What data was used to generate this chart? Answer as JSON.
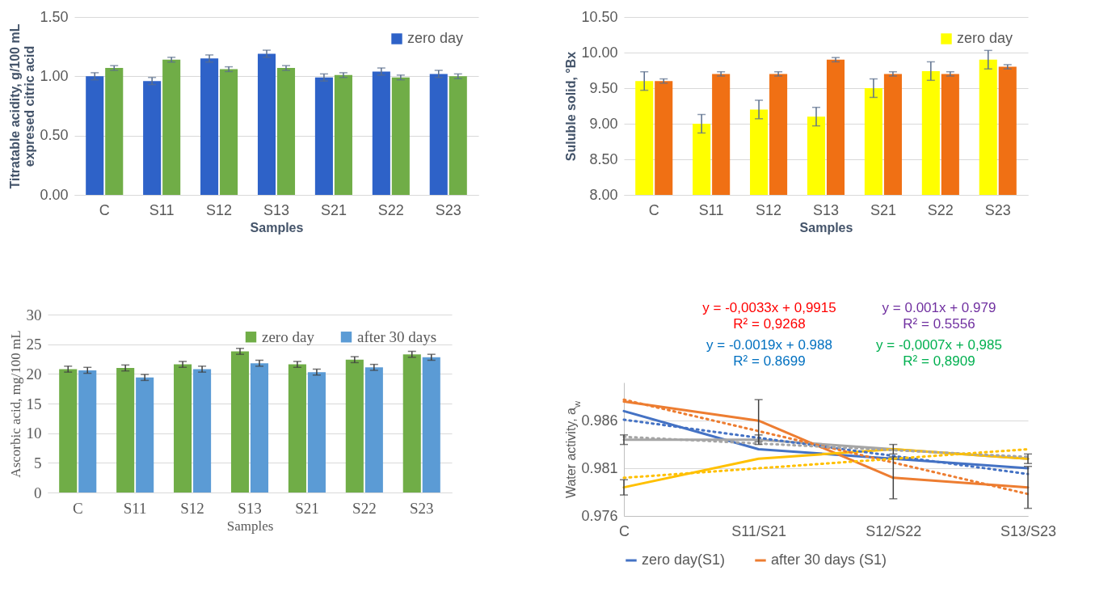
{
  "chart_data": [
    {
      "type": "bar",
      "categories": [
        "C",
        "S11",
        "S12",
        "S13",
        "S21",
        "S22",
        "S23"
      ],
      "xlabel": "Samples",
      "ylabel": "Titratable acidity, g/100 mL expresed citric acid",
      "ylim": [
        0,
        1.5
      ],
      "yticks": [
        {
          "value": 0,
          "label": "0.00"
        },
        {
          "value": 0.5,
          "label": "0.50"
        },
        {
          "value": 1,
          "label": "1.00"
        },
        {
          "value": 1.5,
          "label": "1.50"
        }
      ],
      "grid": "y",
      "legend": "top right",
      "series": [
        {
          "name": "zero day",
          "color": "#2e62c8",
          "values": [
            1.0,
            0.96,
            1.15,
            1.19,
            0.99,
            1.04,
            1.02
          ],
          "errors": [
            0.03,
            0.03,
            0.03,
            0.03,
            0.03,
            0.03,
            0.03
          ]
        },
        {
          "color": "#70ad47",
          "values": [
            1.07,
            1.14,
            1.06,
            1.07,
            1.01,
            0.99,
            1.0
          ],
          "errors": [
            0.02,
            0.02,
            0.02,
            0.02,
            0.02,
            0.02,
            0.02
          ]
        }
      ]
    },
    {
      "type": "bar",
      "categories": [
        "C",
        "S11",
        "S12",
        "S13",
        "S21",
        "S22",
        "S23"
      ],
      "xlabel": "Samples",
      "ylabel": "Suluble solid, °Bx",
      "ylim": [
        8,
        10.5
      ],
      "yticks": [
        {
          "value": 8,
          "label": "8.00"
        },
        {
          "value": 8.5,
          "label": "8.50"
        },
        {
          "value": 9,
          "label": "9.00"
        },
        {
          "value": 9.5,
          "label": "9.50"
        },
        {
          "value": 10,
          "label": "10.00"
        },
        {
          "value": 10.5,
          "label": "10.50"
        }
      ],
      "grid": "y",
      "legend": "top right",
      "series": [
        {
          "name": "zero day",
          "color": "#ffff00",
          "values": [
            9.6,
            9.0,
            9.2,
            9.1,
            9.5,
            9.74,
            9.9
          ],
          "errors": [
            0.13,
            0.13,
            0.13,
            0.13,
            0.13,
            0.13,
            0.13
          ]
        },
        {
          "color": "#f07014",
          "values": [
            9.6,
            9.7,
            9.7,
            9.9,
            9.7,
            9.7,
            9.8
          ],
          "errors": [
            0.03,
            0.03,
            0.03,
            0.03,
            0.03,
            0.03,
            0.03
          ]
        }
      ]
    },
    {
      "type": "bar",
      "categories": [
        "C",
        "S11",
        "S12",
        "S13",
        "S21",
        "S22",
        "S23"
      ],
      "xlabel": "Samples",
      "ylabel": "Ascorbic acid, mg/100 mL",
      "ylim": [
        0,
        30
      ],
      "yticks": [
        0,
        5,
        10,
        15,
        20,
        25,
        30
      ],
      "grid": "y",
      "legend": "top right",
      "series": [
        {
          "name": "zero day",
          "color": "#70ad47",
          "values": [
            20.8,
            21.0,
            21.6,
            23.8,
            21.6,
            22.4,
            23.3
          ],
          "errors": [
            0.5,
            0.5,
            0.5,
            0.5,
            0.5,
            0.5,
            0.5
          ]
        },
        {
          "name": "after 30 days",
          "color": "#5b9bd5",
          "values": [
            20.6,
            19.4,
            20.8,
            21.8,
            20.3,
            21.1,
            22.8
          ],
          "errors": [
            0.5,
            0.5,
            0.5,
            0.5,
            0.5,
            0.5,
            0.5
          ]
        }
      ]
    },
    {
      "type": "line",
      "categories": [
        "C",
        "S11/S21",
        "S12/S22",
        "S13/S23"
      ],
      "ylabel": "Water activity, a$_{w}$",
      "ylim": [
        0.976,
        0.99
      ],
      "yticks": [
        0.976,
        0.981,
        0.986
      ],
      "grid": "y",
      "legend": "bottom",
      "line_style": "solid",
      "annotations": [
        "y = -0,0033x + 0,9915",
        "R² = 0,9268",
        "y = 0.001x + 0.979",
        "R² = 0.5556",
        "y = -0.0019x + 0.988",
        "R² = 0.8699",
        "y = -0,0007x + 0,985",
        "R² = 0,8909"
      ],
      "series": [
        {
          "name": "zero day(S1)",
          "color": "#4472c4",
          "values": [
            0.987,
            0.983,
            0.982,
            0.981
          ]
        },
        {
          "name": "after 30 days (S1)",
          "color": "#ed7d31",
          "values": [
            0.988,
            0.986,
            0.98,
            0.979
          ],
          "errors": [
            null,
            0.0022,
            0.0022,
            0.0022
          ]
        },
        {
          "color": "#a5a5a5",
          "values": [
            0.984,
            0.984,
            0.983,
            0.982
          ],
          "errors": [
            0.0005,
            0.0005,
            0.0005,
            0.0005
          ]
        },
        {
          "color": "#ffc000",
          "values": [
            0.979,
            0.982,
            0.983,
            0.982
          ],
          "errors": [
            0.0008,
            null,
            null,
            null
          ]
        },
        {
          "color": "#4472c4",
          "line_style": "dotted",
          "values": [
            0.9861,
            0.9842,
            0.9823,
            0.9804
          ]
        },
        {
          "color": "#ed7d31",
          "line_style": "dotted",
          "values": [
            0.9882,
            0.9849,
            0.9816,
            0.9783
          ]
        },
        {
          "color": "#a5a5a5",
          "line_style": "dotted",
          "values": [
            0.9843,
            0.9836,
            0.9829,
            0.9822
          ]
        },
        {
          "color": "#ffc000",
          "line_style": "dotted",
          "values": [
            0.98,
            0.981,
            0.982,
            0.983
          ]
        }
      ]
    }
  ]
}
